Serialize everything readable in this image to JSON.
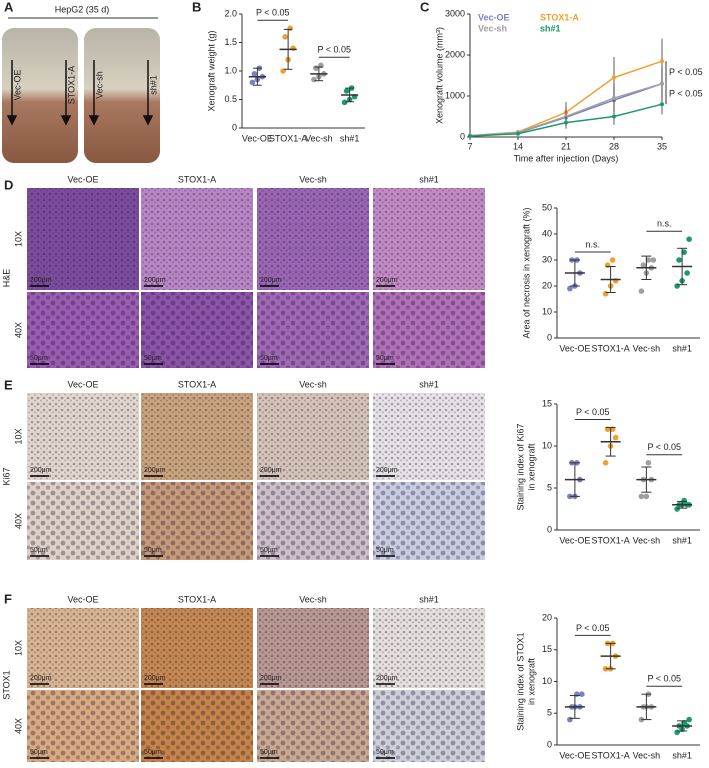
{
  "figure": {
    "letters": [
      "A",
      "B",
      "C",
      "D",
      "E",
      "F"
    ],
    "mouse_title": "HepG2 (35 d)",
    "mouse_labels": [
      "Vec-OE",
      "STOX1-A",
      "Vec-sh",
      "sh#1"
    ],
    "image_panels": [
      {
        "stain": "H&E",
        "columns": [
          "Vec-OE",
          "STOX1-A",
          "Vec-sh",
          "sh#1"
        ],
        "magnifications": [
          "10X",
          "40X"
        ],
        "scale_bars": [
          "200μm",
          "50μm"
        ]
      },
      {
        "stain": "Ki67",
        "columns": [
          "Vec-OE",
          "STOX1-A",
          "Vec-sh",
          "sh#1"
        ],
        "magnifications": [
          "10X",
          "40X"
        ],
        "scale_bars": [
          "200μm",
          "50μm"
        ]
      },
      {
        "stain": "STOX1",
        "columns": [
          "Vec-OE",
          "STOX1-A",
          "Vec-sh",
          "sh#1"
        ],
        "magnifications": [
          "10X",
          "40X"
        ],
        "scale_bars": [
          "200μm",
          "50μm"
        ]
      }
    ]
  },
  "chart_data": [
    {
      "type": "dot",
      "ylabel": "Xenograft weight (g)",
      "categories": [
        "Vec-OE",
        "STOX1-A",
        "Vec-sh",
        "sh#1"
      ],
      "colors": [
        "#7b7fc4",
        "#f0a030",
        "#a0a0a0",
        "#1a9a6a"
      ],
      "points": [
        [
          0.8,
          0.85,
          0.9,
          0.95,
          1.05
        ],
        [
          1.0,
          1.2,
          1.4,
          1.6,
          1.75
        ],
        [
          0.85,
          0.9,
          0.95,
          1.05,
          1.1
        ],
        [
          0.45,
          0.5,
          0.55,
          0.65,
          0.7
        ]
      ],
      "means": [
        0.9,
        1.38,
        0.95,
        0.58
      ],
      "sd": [
        0.15,
        0.35,
        0.12,
        0.12
      ],
      "annotations": [
        "P < 0.05",
        "P < 0.05"
      ],
      "ylim": [
        0,
        2
      ],
      "yticks": [
        0,
        0.5,
        {
          "value": 1,
          "label": "1.0"
        },
        1.5,
        {
          "value": 2,
          "label": "2.0"
        }
      ]
    },
    {
      "type": "line",
      "ylabel": "Xenograft volume (mm³)",
      "xlabel": "Time after injection (Days)",
      "x": [
        7,
        14,
        21,
        28,
        35
      ],
      "xlim": [
        7,
        35
      ],
      "xticks": [
        7,
        14,
        21,
        28,
        35
      ],
      "ylim": [
        0,
        3000
      ],
      "yticks": [
        0,
        1000,
        2000,
        3000
      ],
      "series": [
        {
          "name": "Vec-OE",
          "color": "#7b7fc4",
          "values": [
            30,
            100,
            480,
            900,
            1300
          ],
          "errors": [
            10,
            40,
            200,
            300,
            350
          ]
        },
        {
          "name": "STOX1-A",
          "color": "#f0a030",
          "values": [
            30,
            120,
            600,
            1450,
            1850
          ],
          "errors": [
            10,
            50,
            250,
            500,
            550
          ]
        },
        {
          "name": "Vec-sh",
          "color": "#a0a0a0",
          "values": [
            30,
            110,
            500,
            950,
            1300
          ],
          "errors": [
            10,
            40,
            220,
            350,
            400
          ]
        },
        {
          "name": "sh#1",
          "color": "#1a9a6a",
          "values": [
            20,
            80,
            350,
            500,
            800
          ],
          "errors": [
            10,
            30,
            150,
            200,
            250
          ]
        }
      ],
      "annotations": [
        "P < 0.05",
        "P < 0.05"
      ]
    },
    {
      "type": "dot",
      "ylabel": "Area of necrosis in xenograft (%)",
      "categories": [
        "Vec-OE",
        "STOX1-A",
        "Vec-sh",
        "sh#1"
      ],
      "colors": [
        "#7b7fc4",
        "#f0a030",
        "#a0a0a0",
        "#1a9a6a"
      ],
      "points": [
        [
          19,
          20,
          25,
          30,
          30
        ],
        [
          17,
          20,
          22,
          28,
          30
        ],
        [
          18,
          25,
          27,
          28,
          30,
          30
        ],
        [
          20,
          22,
          25,
          30,
          33,
          38
        ]
      ],
      "means": [
        25,
        22.5,
        27,
        27.5
      ],
      "sd": [
        5,
        5,
        4.5,
        7
      ],
      "annotations": [
        "n.s.",
        "n.s."
      ],
      "ylim": [
        0,
        50
      ],
      "yticks": [
        0,
        10,
        20,
        30,
        40,
        50
      ]
    },
    {
      "type": "dot",
      "ylabel": [
        "Staining index of Ki67",
        "in xenograft"
      ],
      "categories": [
        "Vec-OE",
        "STOX1-A",
        "Vec-sh",
        "sh#1"
      ],
      "colors": [
        "#7b7fc4",
        "#f0a030",
        "#a0a0a0",
        "#1a9a6a"
      ],
      "points": [
        [
          4,
          4,
          6,
          8,
          8
        ],
        [
          8,
          10,
          11,
          12,
          12
        ],
        [
          4,
          4,
          6,
          6,
          8
        ],
        [
          2.5,
          3,
          3,
          3,
          3.5,
          3
        ]
      ],
      "means": [
        6,
        10.5,
        6,
        3
      ],
      "sd": [
        2,
        1.7,
        1.5,
        0.4
      ],
      "annotations": [
        "P < 0.05",
        "P < 0.05"
      ],
      "ylim": [
        0,
        15
      ],
      "yticks": [
        0,
        5,
        10,
        15
      ]
    },
    {
      "type": "dot",
      "ylabel": [
        "Staining index of STOX1",
        "in xenograft"
      ],
      "categories": [
        "Vec-OE",
        "STOX1-A",
        "Vec-sh",
        "sh#1"
      ],
      "colors": [
        "#7b7fc4",
        "#f0a030",
        "#a0a0a0",
        "#1a9a6a"
      ],
      "points": [
        [
          4,
          6,
          6,
          6,
          8,
          8
        ],
        [
          12,
          12,
          14,
          16,
          16
        ],
        [
          4,
          6,
          6,
          6,
          8
        ],
        [
          2,
          2.5,
          3,
          3,
          3.5,
          4
        ]
      ],
      "means": [
        6,
        14,
        6,
        3
      ],
      "sd": [
        1.8,
        2,
        2,
        0.8
      ],
      "annotations": [
        "P < 0.05",
        "P < 0.05"
      ],
      "ylim": [
        0,
        20
      ],
      "yticks": [
        0,
        5,
        10,
        15,
        20
      ]
    }
  ]
}
